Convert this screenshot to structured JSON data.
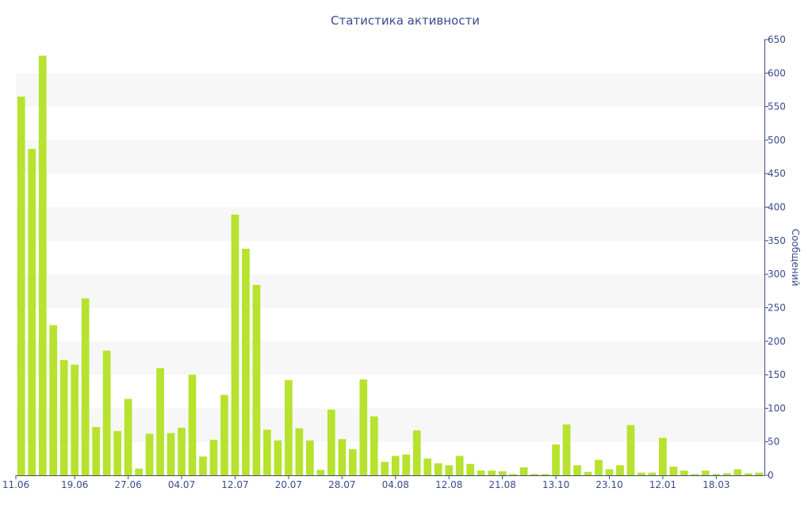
{
  "chart_data": {
    "type": "bar",
    "title": "Статистика активности",
    "xlabel": "",
    "ylabel": "Сообщений",
    "ylim": [
      0,
      650
    ],
    "yticks": [
      0,
      50,
      100,
      150,
      200,
      250,
      300,
      350,
      400,
      450,
      500,
      550,
      600,
      650
    ],
    "y_axis_position": "right",
    "grid": "alternating horizontal bands",
    "legend": "none",
    "xtick_labels": [
      "11.06",
      "19.06",
      "27.06",
      "04.07",
      "12.07",
      "20.07",
      "28.07",
      "04.08",
      "12.08",
      "21.08",
      "13.10",
      "23.10",
      "12.01",
      "18.03"
    ],
    "xtick_positions": [
      0,
      5,
      10,
      15,
      20,
      25,
      30,
      35,
      40,
      45,
      50,
      55,
      60,
      65
    ],
    "values": [
      565,
      487,
      626,
      224,
      172,
      165,
      264,
      72,
      186,
      66,
      114,
      10,
      62,
      160,
      63,
      71,
      150,
      28,
      53,
      120,
      389,
      338,
      284,
      68,
      52,
      142,
      70,
      52,
      8,
      98,
      54,
      39,
      143,
      88,
      20,
      29,
      31,
      67,
      25,
      18,
      15,
      29,
      17,
      7,
      7,
      6,
      2,
      12,
      2,
      2,
      46,
      76,
      15,
      5,
      23,
      9,
      15,
      75,
      4,
      4,
      56,
      13,
      7,
      2,
      7,
      2,
      3,
      9,
      3,
      4
    ],
    "colors": {
      "bar": "#b7e22e",
      "text": "#3b4a8c",
      "band": "#f7f7f7",
      "axis": "#3b4a8c"
    }
  }
}
